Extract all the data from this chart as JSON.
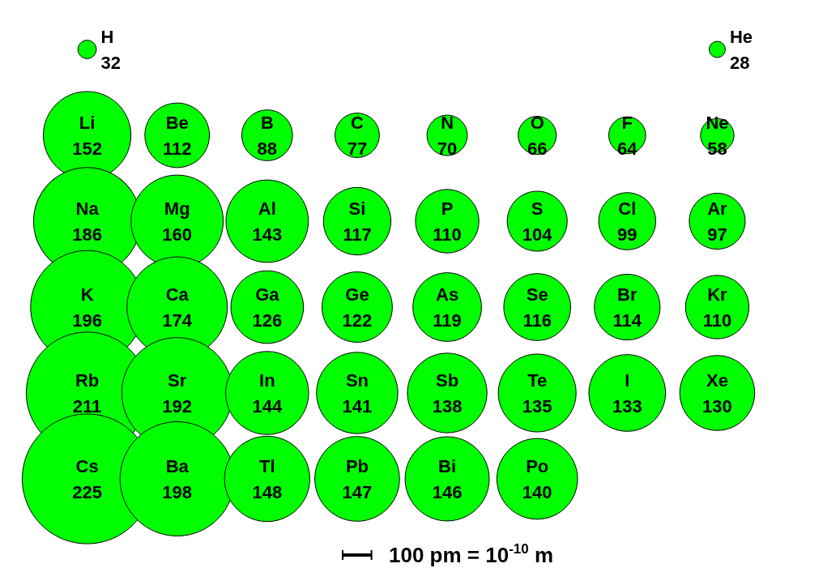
{
  "chart_data": {
    "type": "other",
    "categories": [
      "H",
      null,
      null,
      null,
      null,
      null,
      null,
      "He",
      "Li",
      "Be",
      "B",
      "C",
      "N",
      "O",
      "F",
      "Ne",
      "Na",
      "Mg",
      "Al",
      "Si",
      "P",
      "S",
      "Cl",
      "Ar",
      "K",
      "Ca",
      "Ga",
      "Ge",
      "As",
      "Se",
      "Br",
      "Kr",
      "Rb",
      "Sr",
      "In",
      "Sn",
      "Sb",
      "Te",
      "I",
      "Xe",
      "Cs",
      "Ba",
      "Tl",
      "Pb",
      "Bi",
      "Po",
      null,
      null
    ],
    "values": [
      32,
      null,
      null,
      null,
      null,
      null,
      null,
      28,
      152,
      112,
      88,
      77,
      70,
      66,
      64,
      58,
      186,
      160,
      143,
      117,
      110,
      104,
      99,
      97,
      196,
      174,
      126,
      122,
      119,
      116,
      114,
      110,
      211,
      192,
      144,
      141,
      138,
      135,
      133,
      130,
      225,
      198,
      148,
      147,
      146,
      140,
      null,
      null
    ],
    "data_labels": true,
    "color": "#00ff00",
    "annotations": [
      "100 pm = 10$^{-10}$ m"
    ]
  }
}
